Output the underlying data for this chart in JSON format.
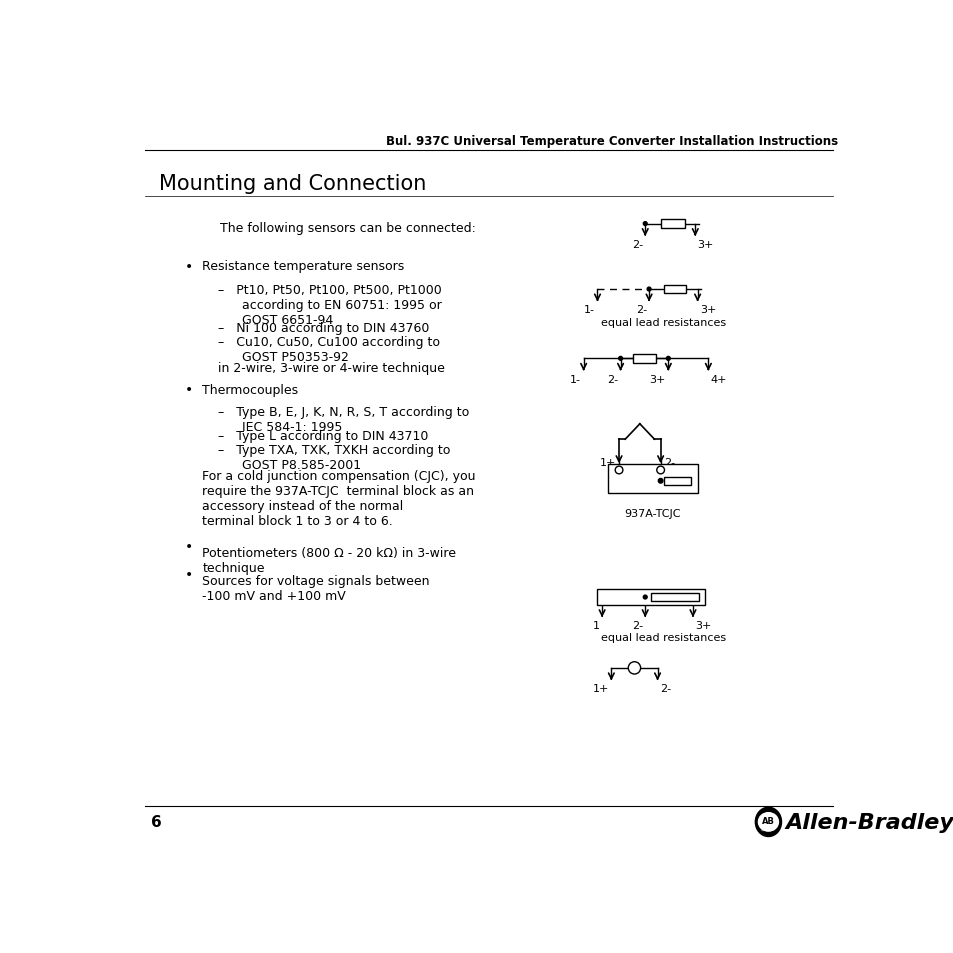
{
  "header": "Bul. 937C Universal Temperature Converter Installation Instructions",
  "title": "Mounting and Connection",
  "intro": "The following sensors can be connected:",
  "bullet1_main": "Resistance temperature sensors",
  "bullet1_sub1": "–   Pt10, Pt50, Pt100, Pt500, Pt1000\n      according to EN 60751: 1995 or\n      GOST 6651-94",
  "bullet1_sub2": "–   Ni 100 according to DIN 43760",
  "bullet1_sub3": "–   Cu10, Cu50, Cu100 according to\n      GOST P50353-92",
  "bullet1_note": "in 2-wire, 3-wire or 4-wire technique",
  "bullet2_main": "Thermocouples",
  "bullet2_sub1": "–   Type B, E, J, K, N, R, S, T according to\n      IEC 584-1: 1995",
  "bullet2_sub2": "–   Type L according to DIN 43710",
  "bullet2_sub3": "–   Type TXA, TXK, TXKH according to\n      GOST P8.585-2001",
  "bullet2_note": "For a cold junction compensation (CJC), you\nrequire the 937A-TCJC  terminal block as an\naccessory instead of the normal\nterminal block 1 to 3 or 4 to 6.",
  "bullet3_main": "Potentiometers (800 Ω - 20 kΩ) in 3-wire\ntechnique",
  "bullet4_main": "Sources for voltage signals between\n-100 mV and +100 mV",
  "page_number": "6",
  "brand": "Allen-Bradley",
  "background_color": "#ffffff",
  "text_color": "#000000"
}
